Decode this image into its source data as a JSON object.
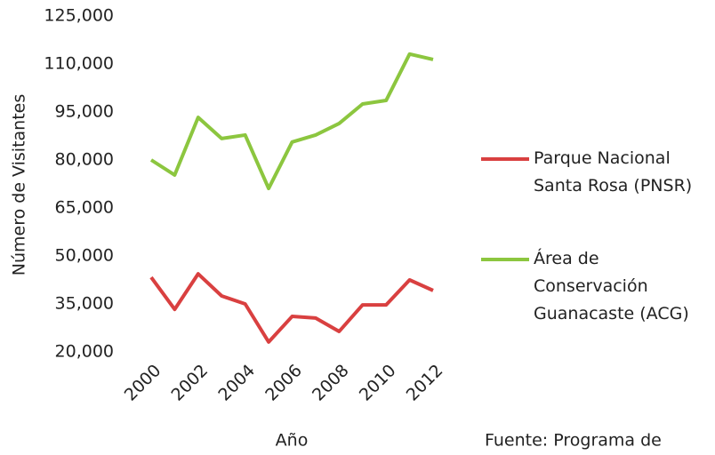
{
  "chart_data": {
    "type": "line",
    "ylabel": "Número de Visitantes",
    "xlabel": "Año",
    "source": "Fuente: Programa de",
    "x": [
      2000,
      2001,
      2002,
      2003,
      2004,
      2005,
      2006,
      2007,
      2008,
      2009,
      2010,
      2011,
      2012
    ],
    "xlim": [
      2000,
      2012
    ],
    "xticks": [
      2000,
      2002,
      2004,
      2006,
      2008,
      2010,
      2012
    ],
    "ylim": [
      20000,
      125000
    ],
    "yticks": [
      {
        "value": 20000,
        "label": "20,000"
      },
      {
        "value": 35000,
        "label": "35,000"
      },
      {
        "value": 50000,
        "label": "50,000"
      },
      {
        "value": 65000,
        "label": "65,000"
      },
      {
        "value": 80000,
        "label": "80,000"
      },
      {
        "value": 95000,
        "label": "95,000"
      },
      {
        "value": 110000,
        "label": "110,000"
      },
      {
        "value": 125000,
        "label": "125,000"
      }
    ],
    "series": [
      {
        "name": "Parque Nacional Santa Rosa (PNSR)",
        "color": "#d94040",
        "values": [
          43300,
          33300,
          44400,
          37500,
          35000,
          23100,
          31100,
          30600,
          26400,
          34700,
          34700,
          42500,
          39200
        ]
      },
      {
        "name": "Área de Conservación Guanacaste (ACG)",
        "color": "#8cc63f",
        "values": [
          80000,
          75300,
          93300,
          86700,
          87800,
          71100,
          85600,
          87800,
          91400,
          97500,
          98600,
          113100,
          111400
        ]
      }
    ],
    "legend": "right"
  }
}
